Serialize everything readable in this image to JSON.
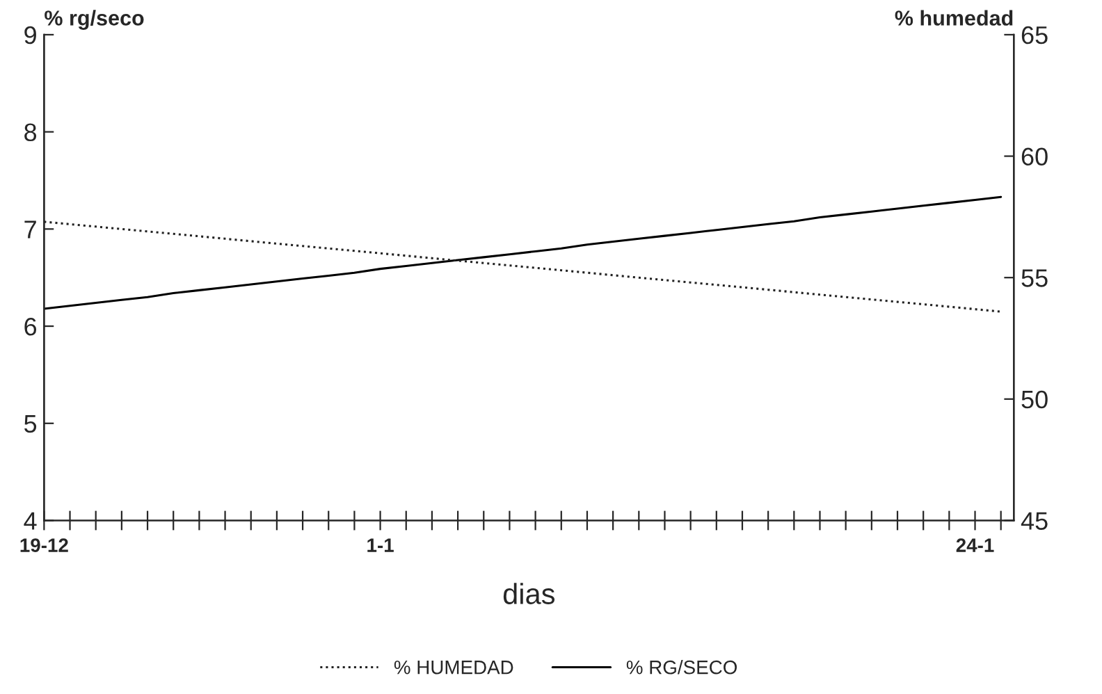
{
  "chart_data": {
    "type": "line",
    "categories": [
      "19-12",
      null,
      null,
      null,
      null,
      null,
      null,
      null,
      null,
      null,
      null,
      null,
      null,
      "1-1",
      null,
      null,
      null,
      null,
      null,
      null,
      null,
      null,
      null,
      null,
      null,
      null,
      null,
      null,
      null,
      null,
      null,
      null,
      null,
      null,
      null,
      null,
      "24-1",
      null
    ],
    "xlabel": "dias",
    "ylabel": "% rg/seco",
    "y2label": "% humedad",
    "ylim": [
      4,
      9
    ],
    "yticks": [
      4,
      5,
      6,
      7,
      8,
      9
    ],
    "y2lim": [
      45,
      65
    ],
    "y2ticks": [
      45,
      50,
      55,
      60,
      65
    ],
    "series": [
      {
        "name": "% HUMEDAD",
        "color": "#222222",
        "axis": "y2",
        "line_style": "dotted",
        "values": [
          57.3,
          57.2,
          57.1,
          57.0,
          56.9,
          56.8,
          56.7,
          56.6,
          56.5,
          56.4,
          56.3,
          56.2,
          56.1,
          56.0,
          55.9,
          55.8,
          55.7,
          55.6,
          55.5,
          55.4,
          55.3,
          55.2,
          55.1,
          55.0,
          54.9,
          54.8,
          54.7,
          54.6,
          54.5,
          54.4,
          54.3,
          54.2,
          54.1,
          54.0,
          53.9,
          53.8,
          53.7,
          53.6
        ]
      },
      {
        "name": "% RG/SECO",
        "color": "#000000",
        "line_style": "solid",
        "values": [
          6.18,
          6.21,
          6.24,
          6.27,
          6.3,
          6.34,
          6.37,
          6.4,
          6.43,
          6.46,
          6.49,
          6.52,
          6.55,
          6.59,
          6.62,
          6.65,
          6.68,
          6.71,
          6.74,
          6.77,
          6.8,
          6.84,
          6.87,
          6.9,
          6.93,
          6.96,
          6.99,
          7.02,
          7.05,
          7.08,
          7.12,
          7.15,
          7.18,
          7.21,
          7.24,
          7.27,
          7.3,
          7.33
        ]
      }
    ],
    "legend": "bottom",
    "grid": false,
    "marker": "none"
  }
}
